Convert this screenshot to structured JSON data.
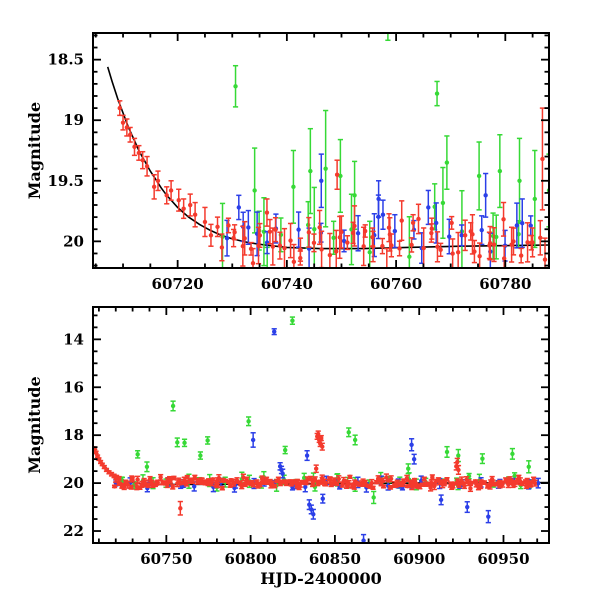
{
  "figure": {
    "background": "#ffffff"
  },
  "colors": {
    "red": "#f43a2d",
    "green": "#36d936",
    "blue": "#2b3fe8",
    "curve": "#000000",
    "frame": "#000000"
  },
  "chart_data": [
    {
      "type": "scatter",
      "panel": "top",
      "title": "",
      "xlabel": "",
      "ylabel": "Magnitude",
      "y_axis_style": "inverted-magnitude",
      "grid": false,
      "legend": "none",
      "xlim": {
        "min": 60704.5,
        "max": 60788
      },
      "ylim": {
        "top": 18.28,
        "bottom": 20.22
      },
      "x_major_ticks": [
        60720,
        60740,
        60760,
        60780
      ],
      "x_tick_labels": [
        "60720",
        "60740",
        "60760",
        "60780"
      ],
      "x_minor_step": 5,
      "y_major_ticks": [
        18.5,
        19,
        19.5,
        20
      ],
      "y_tick_labels": [
        "18.5",
        "19",
        "19.5",
        "20"
      ],
      "y_minor_step": 0.1,
      "curve": {
        "name": "exponential-decline-fit",
        "color_key": "curve",
        "points": [
          [
            60707.2,
            18.56
          ],
          [
            60708,
            18.68
          ],
          [
            60709,
            18.82
          ],
          [
            60710,
            18.94
          ],
          [
            60711,
            19.06
          ],
          [
            60712,
            19.16
          ],
          [
            60713,
            19.26
          ],
          [
            60714,
            19.34
          ],
          [
            60715,
            19.42
          ],
          [
            60716,
            19.49
          ],
          [
            60717,
            19.56
          ],
          [
            60718,
            19.62
          ],
          [
            60719,
            19.67
          ],
          [
            60720,
            19.72
          ],
          [
            60721,
            19.76
          ],
          [
            60722,
            19.8
          ],
          [
            60724,
            19.86
          ],
          [
            60726,
            19.91
          ],
          [
            60728,
            19.95
          ],
          [
            60730,
            19.98
          ],
          [
            60733,
            20.01
          ],
          [
            60736,
            20.03
          ],
          [
            60740,
            20.05
          ],
          [
            60746,
            20.06
          ],
          [
            60754,
            20.06
          ],
          [
            60762,
            20.05
          ],
          [
            60772,
            20.04
          ],
          [
            60788,
            20.03
          ]
        ]
      },
      "series": [
        {
          "name": "green-band",
          "color_key": "green",
          "points": [
            [
              60730.6,
              18.72,
              0.17
            ],
            [
              60734.1,
              19.58,
              0.35
            ],
            [
              60735.8,
              19.92,
              0.28
            ],
            [
              60736.4,
              20.3,
              0.25
            ],
            [
              60741.2,
              19.55,
              0.3
            ],
            [
              60744.3,
              19.42,
              0.35
            ],
            [
              60747.1,
              19.4,
              0.48
            ],
            [
              60749.8,
              19.46,
              0.3
            ],
            [
              60752.4,
              19.62,
              0.28
            ],
            [
              60758.5,
              18.22,
              0.12
            ],
            [
              60767.5,
              18.78,
              0.1
            ],
            [
              60769.3,
              19.35,
              0.22
            ],
            [
              60775.2,
              19.46,
              0.28
            ],
            [
              60779.0,
              19.42,
              0.3
            ],
            [
              60782.6,
              19.5,
              0.35
            ],
            [
              60785.4,
              19.65,
              0.4
            ],
            [
              60788.0,
              19.58,
              0.3
            ]
          ],
          "band": {
            "seed": 7,
            "n": 16,
            "x0": 60731,
            "x1": 60788,
            "mean": 19.95,
            "jitter": 0.3,
            "err0": 0.1,
            "err1": 0.35
          }
        },
        {
          "name": "blue-band",
          "color_key": "blue",
          "points": [
            [
              60731.2,
              19.72,
              0.1
            ],
            [
              60732.0,
              19.88,
              0.12
            ],
            [
              60746.3,
              19.5,
              0.22
            ],
            [
              60756.8,
              19.65,
              0.15
            ],
            [
              60757.6,
              19.78,
              0.12
            ],
            [
              60765.9,
              19.72,
              0.14
            ],
            [
              60776.4,
              19.62,
              0.18
            ],
            [
              60783.1,
              19.85,
              0.2
            ]
          ],
          "band": {
            "seed": 11,
            "n": 24,
            "x0": 60729,
            "x1": 60788,
            "mean": 19.95,
            "jitter": 0.17,
            "err0": 0.07,
            "err1": 0.2
          }
        },
        {
          "name": "red-band",
          "color_key": "red",
          "points": [
            [
              60709.4,
              18.9,
              0.06
            ],
            [
              60710.0,
              19.02,
              0.06
            ],
            [
              60710.7,
              19.06,
              0.07
            ],
            [
              60711.3,
              19.12,
              0.06
            ],
            [
              60712.1,
              19.22,
              0.07
            ],
            [
              60712.9,
              19.27,
              0.06
            ],
            [
              60713.6,
              19.33,
              0.07
            ],
            [
              60714.4,
              19.38,
              0.08
            ],
            [
              60715.7,
              19.55,
              0.1
            ],
            [
              60716.4,
              19.5,
              0.08
            ],
            [
              60718.0,
              19.62,
              0.07
            ],
            [
              60718.8,
              19.58,
              0.08
            ],
            [
              60720.2,
              19.66,
              0.09
            ],
            [
              60721.1,
              19.73,
              0.08
            ],
            [
              60722.3,
              19.7,
              0.09
            ],
            [
              60723.2,
              19.78,
              0.1
            ],
            [
              60725.0,
              19.84,
              0.12
            ],
            [
              60726.1,
              19.95,
              0.09
            ],
            [
              60727.3,
              19.88,
              0.08
            ],
            [
              60728.1,
              20.05,
              0.11
            ],
            [
              60733.8,
              20.18,
              0.12
            ],
            [
              60736.9,
              19.92,
              0.1
            ],
            [
              60749.2,
              19.45,
              0.12
            ],
            [
              60758.3,
              20.28,
              0.22
            ],
            [
              60786.8,
              19.32,
              0.42
            ]
          ],
          "band": {
            "seed": 3,
            "n": 68,
            "x0": 60729,
            "x1": 60788,
            "mean": 19.98,
            "jitter": 0.22,
            "err0": 0.05,
            "err1": 0.18
          }
        }
      ]
    },
    {
      "type": "scatter",
      "panel": "bottom",
      "title": "",
      "xlabel": "HJD-2400000",
      "ylabel": "Magnitude",
      "y_axis_style": "inverted-magnitude",
      "grid": false,
      "legend": "none",
      "xlim": {
        "min": 60706.5,
        "max": 60977
      },
      "ylim": {
        "top": 12.65,
        "bottom": 22.5
      },
      "x_major_ticks": [
        60750,
        60800,
        60850,
        60900,
        60950
      ],
      "x_tick_labels": [
        "60750",
        "60800",
        "60850",
        "60900",
        "60950"
      ],
      "x_minor_step": 10,
      "y_major_ticks": [
        14,
        16,
        18,
        20,
        22
      ],
      "y_tick_labels": [
        "14",
        "16",
        "18",
        "20",
        "22"
      ],
      "y_minor_step": 0.5,
      "curve": {
        "name": "exponential-decline-fit",
        "color_key": "curve",
        "points": [
          [
            60707.2,
            18.56
          ],
          [
            60709,
            18.82
          ],
          [
            60711,
            19.06
          ],
          [
            60713,
            19.26
          ],
          [
            60715,
            19.42
          ],
          [
            60717,
            19.56
          ],
          [
            60719,
            19.67
          ],
          [
            60721,
            19.76
          ],
          [
            60724,
            19.86
          ],
          [
            60728,
            19.95
          ],
          [
            60734,
            20.02
          ],
          [
            60742,
            20.05
          ],
          [
            60760,
            20.06
          ],
          [
            60800,
            20.04
          ],
          [
            60900,
            20.0
          ],
          [
            60977,
            19.98
          ]
        ]
      },
      "series": [
        {
          "name": "green-band",
          "color_key": "green",
          "points": [
            [
              60733.0,
              18.8,
              0.15
            ],
            [
              60738.5,
              19.32,
              0.2
            ],
            [
              60754.0,
              16.78,
              0.2
            ],
            [
              60756.5,
              18.3,
              0.18
            ],
            [
              60760.8,
              18.32,
              0.15
            ],
            [
              60770.2,
              18.85,
              0.15
            ],
            [
              60774.5,
              18.22,
              0.15
            ],
            [
              60798.8,
              17.42,
              0.18
            ],
            [
              60820.5,
              18.62,
              0.15
            ],
            [
              60824.8,
              13.22,
              0.15
            ],
            [
              60858.2,
              17.88,
              0.18
            ],
            [
              60862.0,
              18.2,
              0.2
            ],
            [
              60873.0,
              20.6,
              0.25
            ],
            [
              60893.5,
              19.4,
              0.2
            ],
            [
              60916.5,
              18.7,
              0.22
            ],
            [
              60923.2,
              18.85,
              0.25
            ],
            [
              60937.5,
              18.98,
              0.2
            ],
            [
              60955.3,
              18.78,
              0.22
            ],
            [
              60965.0,
              19.32,
              0.25
            ]
          ],
          "band": {
            "seed": 17,
            "n": 46,
            "x0": 60722,
            "x1": 60968,
            "mean": 19.95,
            "jitter": 0.3,
            "err0": 0.08,
            "err1": 0.3
          }
        },
        {
          "name": "blue-band",
          "color_key": "blue",
          "points": [
            [
              60801.5,
              18.2,
              0.3
            ],
            [
              60814.0,
              13.68,
              0.12
            ],
            [
              60817.5,
              19.3,
              0.15
            ],
            [
              60818.3,
              19.45,
              0.15
            ],
            [
              60819.0,
              19.6,
              0.18
            ],
            [
              60833.5,
              18.85,
              0.2
            ],
            [
              60834.8,
              20.9,
              0.2
            ],
            [
              60836.0,
              21.1,
              0.18
            ],
            [
              60837.2,
              21.3,
              0.2
            ],
            [
              60842.8,
              20.65,
              0.18
            ],
            [
              60867.0,
              22.4,
              0.25
            ],
            [
              60895.5,
              18.4,
              0.25
            ],
            [
              60897.0,
              19.0,
              0.2
            ],
            [
              60913.0,
              20.7,
              0.2
            ],
            [
              60928.5,
              21.0,
              0.22
            ],
            [
              60941.0,
              21.4,
              0.25
            ]
          ],
          "band": {
            "seed": 23,
            "n": 40,
            "x0": 60724,
            "x1": 60968,
            "mean": 20.05,
            "jitter": 0.2,
            "err0": 0.08,
            "err1": 0.22
          }
        },
        {
          "name": "red-band",
          "color_key": "red",
          "points": [
            [
              60707.5,
              18.55,
              0.05
            ],
            [
              60708.3,
              18.72,
              0.05
            ],
            [
              60709.2,
              18.88,
              0.05
            ],
            [
              60710.0,
              19.0,
              0.05
            ],
            [
              60711.0,
              19.12,
              0.06
            ],
            [
              60712.0,
              19.22,
              0.05
            ],
            [
              60713.2,
              19.33,
              0.06
            ],
            [
              60714.5,
              19.45,
              0.06
            ],
            [
              60716.0,
              19.55,
              0.06
            ],
            [
              60717.5,
              19.63,
              0.07
            ],
            [
              60719.0,
              19.7,
              0.07
            ],
            [
              60720.5,
              19.75,
              0.07
            ],
            [
              60722.0,
              19.8,
              0.07
            ],
            [
              60758.3,
              21.05,
              0.28
            ],
            [
              60838.9,
              19.4,
              0.15
            ],
            [
              60839.5,
              18.05,
              0.12
            ],
            [
              60840.1,
              17.95,
              0.12
            ],
            [
              60840.7,
              18.2,
              0.1
            ],
            [
              60841.3,
              18.35,
              0.12
            ],
            [
              60841.9,
              18.12,
              0.1
            ],
            [
              60842.5,
              18.48,
              0.14
            ],
            [
              60922.0,
              19.3,
              0.15
            ],
            [
              60922.6,
              19.12,
              0.15
            ],
            [
              60923.3,
              19.45,
              0.18
            ]
          ],
          "band": {
            "seed": 31,
            "n": 235,
            "x0": 60719,
            "x1": 60969,
            "mean": 19.98,
            "jitter": 0.27,
            "err0": 0.04,
            "err1": 0.14
          }
        }
      ]
    }
  ]
}
